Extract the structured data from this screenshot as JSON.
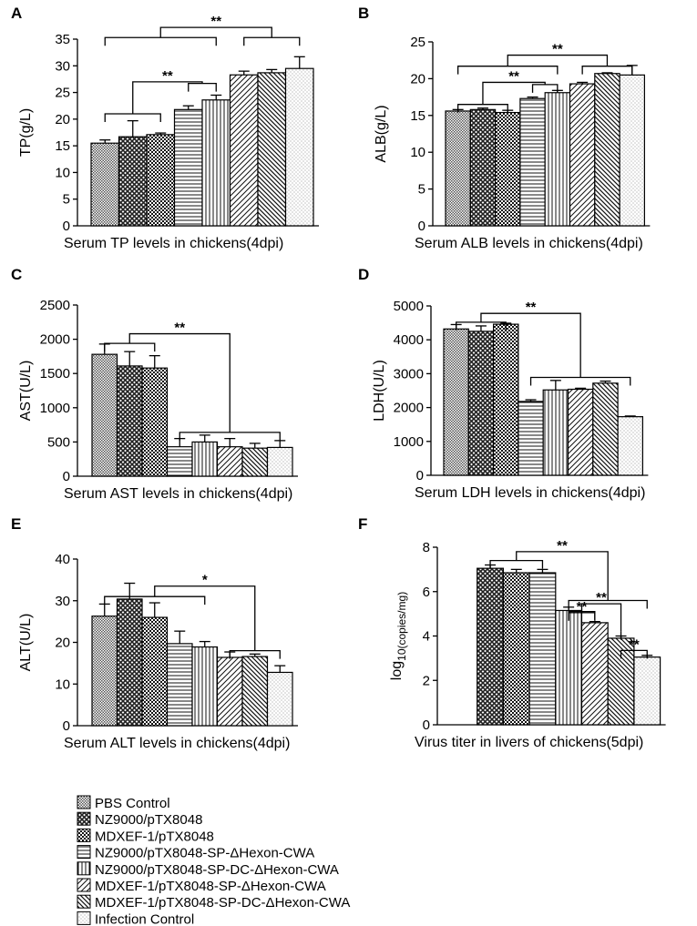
{
  "legend": [
    {
      "label": "PBS Control",
      "pattern": "p0"
    },
    {
      "label": "NZ9000/pTX8048",
      "pattern": "p1"
    },
    {
      "label": "MDXEF-1/pTX8048",
      "pattern": "p2"
    },
    {
      "label": "NZ9000/pTX8048-SP-ΔHexon-CWA",
      "pattern": "p3"
    },
    {
      "label": "NZ9000/pTX8048-SP-DC-ΔHexon-CWA",
      "pattern": "p4"
    },
    {
      "label": "MDXEF-1/pTX8048-SP-ΔHexon-CWA",
      "pattern": "p5"
    },
    {
      "label": "MDXEF-1/pTX8048-SP-DC-ΔHexon-CWA",
      "pattern": "p6"
    },
    {
      "label": "Infection Control",
      "pattern": "p7"
    }
  ],
  "chart_data": [
    {
      "type": "bar",
      "panel": "A",
      "ylabel": "TP(g/L)",
      "xlabel": "Serum TP levels in chickens(4dpi)",
      "ylim": [
        0,
        35
      ],
      "yticks": [
        0,
        5,
        10,
        15,
        20,
        25,
        30,
        35
      ],
      "values": [
        15.5,
        16.7,
        17.1,
        21.8,
        23.6,
        28.3,
        28.7,
        29.5
      ],
      "errors": [
        0.6,
        3.0,
        0.3,
        0.7,
        0.9,
        0.7,
        0.6,
        2.2
      ],
      "significance": [
        {
          "type": "nested",
          "label": "**",
          "g1": [
            0,
            2
          ],
          "g2": [
            3,
            4
          ],
          "h1": 21,
          "h2": 26.7,
          "hj": 27
        },
        {
          "type": "nested",
          "label": "**",
          "g1": [
            0,
            4
          ],
          "g2": [
            5,
            7
          ],
          "h1": 35.3,
          "h2": 35.3,
          "hj": 37.2
        }
      ]
    },
    {
      "type": "bar",
      "panel": "B",
      "ylabel": "ALB(g/L)",
      "xlabel": "Serum ALB levels in chickens(4dpi)",
      "ylim": [
        0,
        25
      ],
      "yticks": [
        0,
        5,
        10,
        15,
        20,
        25
      ],
      "values": [
        15.6,
        15.8,
        15.4,
        17.3,
        18.1,
        19.3,
        20.7,
        20.5
      ],
      "errors": [
        0.2,
        0.2,
        0.3,
        0.2,
        0.3,
        0.2,
        0.1,
        1.3
      ],
      "significance": [
        {
          "type": "nested",
          "label": "**",
          "g1": [
            0,
            2
          ],
          "g2": [
            3,
            4
          ],
          "h1": 16.5,
          "h2": 19.2,
          "hj": 19.5
        },
        {
          "type": "nested",
          "label": "**",
          "g1": [
            0,
            4
          ],
          "g2": [
            5,
            7
          ],
          "h1": 21.7,
          "h2": 21.7,
          "hj": 23.2
        }
      ]
    },
    {
      "type": "bar",
      "panel": "C",
      "ylabel": "AST(U/L)",
      "xlabel": "Serum AST levels in chickens(4dpi)",
      "ylim": [
        0,
        2500
      ],
      "yticks": [
        0,
        500,
        1000,
        1500,
        2000,
        2500
      ],
      "values": [
        1780,
        1610,
        1580,
        430,
        500,
        430,
        410,
        420
      ],
      "errors": [
        150,
        210,
        180,
        120,
        100,
        120,
        70,
        100
      ],
      "significance": [
        {
          "type": "nested",
          "label": "**",
          "g1": [
            0,
            2
          ],
          "g2": [
            3,
            7
          ],
          "h1": 1940,
          "h2": 640,
          "hj": 2080
        }
      ]
    },
    {
      "type": "bar",
      "panel": "D",
      "ylabel": "LDH(U/L)",
      "xlabel": "Serum LDH levels in chickens(4dpi)",
      "ylim": [
        0,
        5000
      ],
      "yticks": [
        0,
        1000,
        2000,
        3000,
        4000,
        5000
      ],
      "values": [
        4320,
        4250,
        4460,
        2180,
        2520,
        2540,
        2720,
        1730
      ],
      "errors": [
        130,
        160,
        30,
        50,
        280,
        30,
        60,
        20
      ],
      "significance": [
        {
          "type": "nested",
          "label": "**",
          "g1": [
            0,
            2
          ],
          "g2": [
            3,
            7
          ],
          "h1": 4520,
          "h2": 2890,
          "hj": 4780
        }
      ]
    },
    {
      "type": "bar",
      "panel": "E",
      "ylabel": "ALT(U/L)",
      "xlabel": "Serum ALT levels in chickens(4dpi)",
      "ylim": [
        0,
        40
      ],
      "yticks": [
        0,
        10,
        20,
        30,
        40
      ],
      "values": [
        26.3,
        30.4,
        26.0,
        19.7,
        18.9,
        16.4,
        16.6,
        12.8
      ],
      "errors": [
        2.9,
        3.8,
        3.5,
        3.0,
        1.3,
        1.3,
        0.6,
        1.6
      ],
      "significance": [
        {
          "type": "nested",
          "label": "*",
          "g1": [
            0,
            4
          ],
          "g2": [
            5,
            7
          ],
          "h1": 31,
          "h2": 18,
          "hj": 33.5
        }
      ]
    },
    {
      "type": "bar",
      "panel": "F",
      "ylabel": "log 10(copies/mg)",
      "xlabel": "Virus titer in livers of chickens(5dpi)",
      "ylim": [
        0,
        8
      ],
      "yticks": [
        0,
        2,
        4,
        6,
        8
      ],
      "values": [
        null,
        7.05,
        6.85,
        6.85,
        5.15,
        4.6,
        3.9,
        3.05
      ],
      "errors": [
        0,
        0.15,
        0.15,
        0.15,
        0.15,
        0.05,
        0.1,
        0.08
      ],
      "significance": [
        {
          "type": "nested",
          "label": "**",
          "g1": [
            1,
            3
          ],
          "g2": [
            4,
            7
          ],
          "h1": 7.4,
          "h2": 5.6,
          "hj": 7.8
        },
        {
          "type": "bracket",
          "label": "**",
          "a": 4,
          "b": 5,
          "h": 5.05
        },
        {
          "type": "nested",
          "label": "**",
          "g1": [
            4,
            5
          ],
          "g2": [
            6,
            6
          ],
          "h1": 5.1,
          "h2": 4.2,
          "hj": 5.45
        },
        {
          "type": "bracket",
          "label": "**",
          "a": 6,
          "b": 7,
          "h": 3.35
        }
      ]
    }
  ]
}
